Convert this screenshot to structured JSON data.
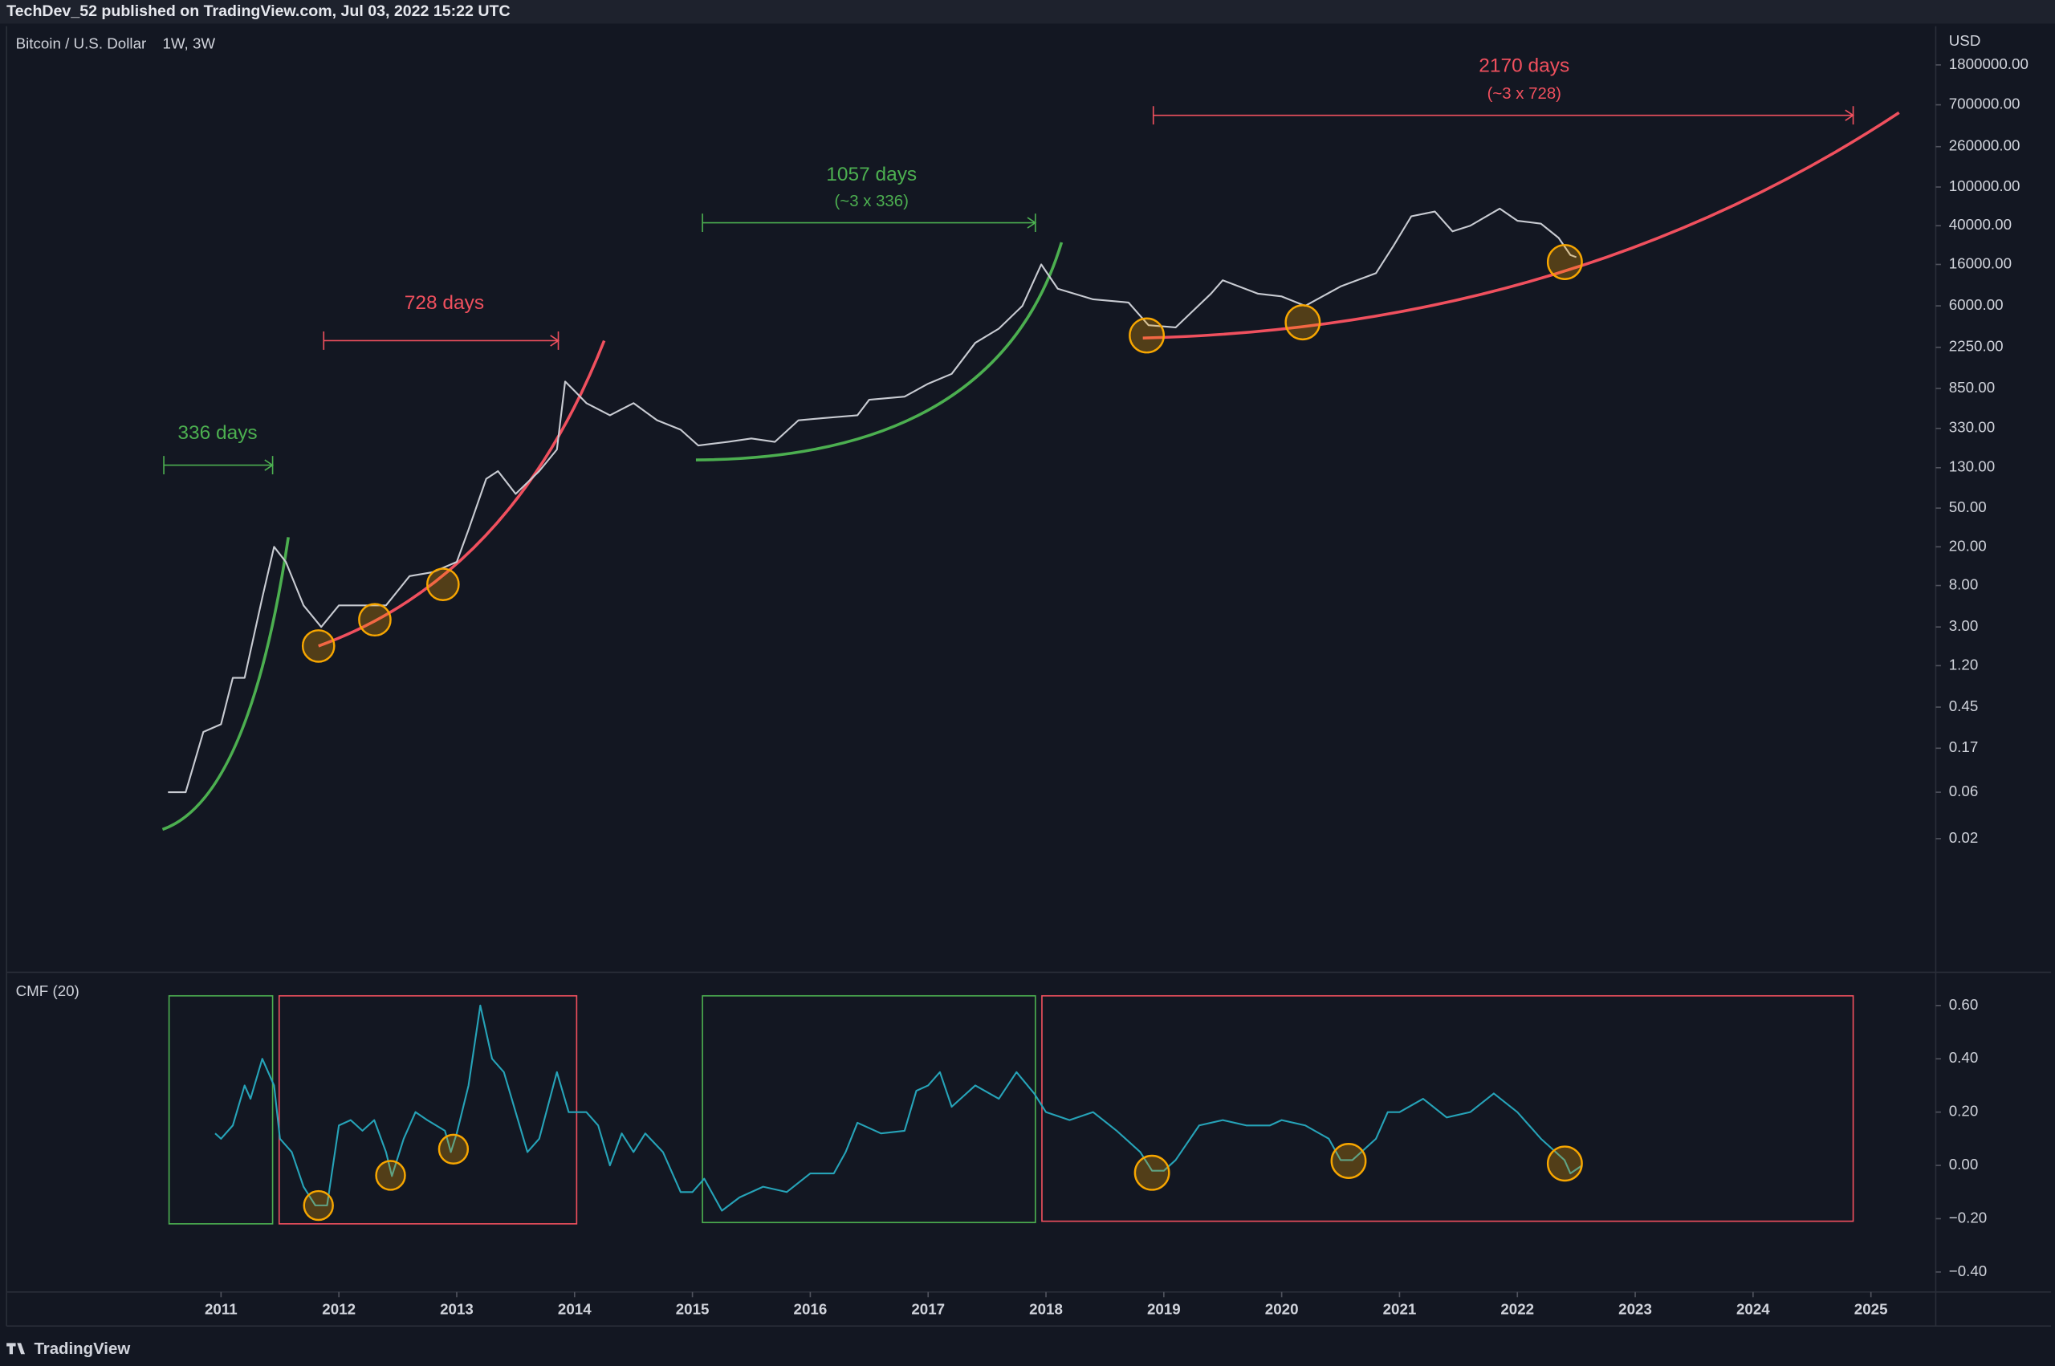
{
  "header": {
    "text": "TechDev_52 published on TradingView.com, Jul 03, 2022 15:22 UTC"
  },
  "footer": {
    "brand": "TradingView"
  },
  "chart_data": [
    {
      "type": "line",
      "title": "Bitcoin / U.S. Dollar",
      "interval": "1W, 3W",
      "y_axis_label": "USD",
      "log_scale": true,
      "color": "#c8cbd2",
      "annotations": [
        "336 days",
        "728 days",
        "1057 days",
        "(~3 x 336)",
        "2170 days",
        "(~3 x 728)"
      ],
      "x": [
        2010.55,
        2010.7,
        2010.85,
        2011.0,
        2011.1,
        2011.2,
        2011.35,
        2011.45,
        2011.55,
        2011.7,
        2011.85,
        2012.0,
        2012.2,
        2012.4,
        2012.6,
        2012.8,
        2013.0,
        2013.1,
        2013.25,
        2013.35,
        2013.5,
        2013.7,
        2013.85,
        2013.92,
        2014.0,
        2014.1,
        2014.3,
        2014.5,
        2014.7,
        2014.9,
        2015.05,
        2015.3,
        2015.5,
        2015.7,
        2015.9,
        2016.1,
        2016.4,
        2016.5,
        2016.8,
        2017.0,
        2017.2,
        2017.4,
        2017.6,
        2017.8,
        2017.96,
        2018.1,
        2018.4,
        2018.7,
        2018.87,
        2019.1,
        2019.4,
        2019.5,
        2019.8,
        2020.0,
        2020.2,
        2020.5,
        2020.8,
        2020.95,
        2021.1,
        2021.3,
        2021.45,
        2021.6,
        2021.85,
        2022.0,
        2022.2,
        2022.35,
        2022.45,
        2022.5
      ],
      "values": [
        0.06,
        0.06,
        0.25,
        0.3,
        0.9,
        0.9,
        6,
        20,
        14,
        5,
        3,
        5,
        5,
        5,
        10,
        11,
        14,
        30,
        100,
        120,
        70,
        120,
        200,
        1000,
        800,
        600,
        450,
        600,
        400,
        320,
        220,
        240,
        260,
        240,
        400,
        420,
        450,
        650,
        700,
        950,
        1200,
        2500,
        3500,
        6000,
        16000,
        9000,
        7000,
        6500,
        3800,
        3600,
        8000,
        11000,
        8000,
        7500,
        6000,
        9500,
        13000,
        25000,
        50000,
        56000,
        35000,
        40000,
        60000,
        45000,
        42000,
        30000,
        20000,
        19000
      ],
      "xlim": [
        2009.18,
        2025.55
      ],
      "ylim": [
        0.0009,
        4500000
      ],
      "yticks": [
        {
          "value": 1800000,
          "label": "1800000.00"
        },
        {
          "value": 700000,
          "label": "700000.00"
        },
        {
          "value": 260000,
          "label": "260000.00"
        },
        {
          "value": 100000,
          "label": "100000.00"
        },
        {
          "value": 40000,
          "label": "40000.00"
        },
        {
          "value": 16000,
          "label": "16000.00"
        },
        {
          "value": 6000,
          "label": "6000.00"
        },
        {
          "value": 2250,
          "label": "2250.00"
        },
        {
          "value": 850,
          "label": "850.00"
        },
        {
          "value": 330,
          "label": "330.00"
        },
        {
          "value": 130,
          "label": "130.00"
        },
        {
          "value": 50,
          "label": "50.00"
        },
        {
          "value": 20,
          "label": "20.00"
        },
        {
          "value": 8,
          "label": "8.00"
        },
        {
          "value": 3,
          "label": "3.00"
        },
        {
          "value": 1.2,
          "label": "1.20"
        },
        {
          "value": 0.45,
          "label": "0.45"
        },
        {
          "value": 0.17,
          "label": "0.17"
        },
        {
          "value": 0.06,
          "label": "0.06"
        },
        {
          "value": 0.02,
          "label": "0.02"
        }
      ]
    },
    {
      "type": "line",
      "title": "CMF (20)",
      "color": "#26a3b8",
      "x": [
        2010.95,
        2011.0,
        2011.1,
        2011.2,
        2011.25,
        2011.35,
        2011.45,
        2011.5,
        2011.6,
        2011.7,
        2011.8,
        2011.9,
        2012.0,
        2012.1,
        2012.2,
        2012.3,
        2012.4,
        2012.45,
        2012.55,
        2012.65,
        2012.75,
        2012.9,
        2012.95,
        2013.0,
        2013.1,
        2013.2,
        2013.3,
        2013.4,
        2013.5,
        2013.6,
        2013.7,
        2013.85,
        2013.95,
        2014.1,
        2014.2,
        2014.3,
        2014.4,
        2014.5,
        2014.6,
        2014.75,
        2014.9,
        2015.0,
        2015.1,
        2015.25,
        2015.4,
        2015.6,
        2015.8,
        2016.0,
        2016.2,
        2016.3,
        2016.4,
        2016.6,
        2016.8,
        2016.9,
        2017.0,
        2017.1,
        2017.2,
        2017.4,
        2017.6,
        2017.75,
        2017.9,
        2018.0,
        2018.2,
        2018.4,
        2018.6,
        2018.8,
        2018.9,
        2019.0,
        2019.1,
        2019.3,
        2019.5,
        2019.7,
        2019.9,
        2020.0,
        2020.2,
        2020.4,
        2020.5,
        2020.6,
        2020.8,
        2020.9,
        2021.0,
        2021.2,
        2021.4,
        2021.6,
        2021.8,
        2022.0,
        2022.1,
        2022.2,
        2022.3,
        2022.4,
        2022.45,
        2022.55
      ],
      "values": [
        0.12,
        0.1,
        0.15,
        0.3,
        0.25,
        0.4,
        0.3,
        0.1,
        0.05,
        -0.08,
        -0.15,
        -0.15,
        0.15,
        0.17,
        0.13,
        0.17,
        0.05,
        -0.04,
        0.1,
        0.2,
        0.17,
        0.13,
        0.05,
        0.12,
        0.3,
        0.6,
        0.4,
        0.35,
        0.2,
        0.05,
        0.1,
        0.35,
        0.2,
        0.2,
        0.15,
        0.0,
        0.12,
        0.05,
        0.12,
        0.05,
        -0.1,
        -0.1,
        -0.05,
        -0.17,
        -0.12,
        -0.08,
        -0.1,
        -0.03,
        -0.03,
        0.05,
        0.16,
        0.12,
        0.13,
        0.28,
        0.3,
        0.35,
        0.22,
        0.3,
        0.25,
        0.35,
        0.27,
        0.2,
        0.17,
        0.2,
        0.13,
        0.05,
        -0.02,
        -0.02,
        0.02,
        0.15,
        0.17,
        0.15,
        0.15,
        0.17,
        0.15,
        0.1,
        0.02,
        0.02,
        0.1,
        0.2,
        0.2,
        0.25,
        0.18,
        0.2,
        0.27,
        0.2,
        0.15,
        0.1,
        0.06,
        0.02,
        -0.03,
        0.0
      ],
      "xlim": [
        2009.18,
        2025.55
      ],
      "xticks": [
        2011,
        2012,
        2013,
        2014,
        2015,
        2016,
        2017,
        2018,
        2019,
        2020,
        2021,
        2022,
        2023,
        2024,
        2025
      ],
      "ylim": [
        -0.47,
        0.71
      ],
      "yticks": [
        {
          "value": 0.6,
          "label": "0.60"
        },
        {
          "value": 0.4,
          "label": "0.40"
        },
        {
          "value": 0.2,
          "label": "0.20"
        },
        {
          "value": 0,
          "label": "0.00"
        },
        {
          "value": -0.2,
          "label": "−0.20"
        },
        {
          "value": -0.4,
          "label": "−0.40"
        }
      ]
    }
  ]
}
